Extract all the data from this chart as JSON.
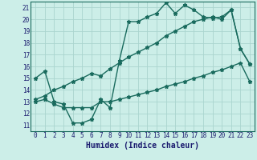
{
  "title": "",
  "xlabel": "Humidex (Indice chaleur)",
  "ylabel": "",
  "bg_color": "#cceee8",
  "grid_color": "#aad4ce",
  "line_color": "#1a6b5e",
  "xlim": [
    -0.5,
    23.5
  ],
  "ylim": [
    10.5,
    21.5
  ],
  "xticks": [
    0,
    1,
    2,
    3,
    4,
    5,
    6,
    7,
    8,
    9,
    10,
    11,
    12,
    13,
    14,
    15,
    16,
    17,
    18,
    19,
    20,
    21,
    22,
    23
  ],
  "yticks": [
    11,
    12,
    13,
    14,
    15,
    16,
    17,
    18,
    19,
    20,
    21
  ],
  "series1_x": [
    0,
    1,
    2,
    3,
    4,
    5,
    6,
    7,
    8,
    9,
    10,
    11,
    12,
    13,
    14,
    15,
    16,
    17,
    18,
    19,
    20,
    21,
    22,
    23
  ],
  "series1_y": [
    15.0,
    15.6,
    13.0,
    12.8,
    11.2,
    11.2,
    11.5,
    13.2,
    12.5,
    16.5,
    19.8,
    19.8,
    20.2,
    20.5,
    21.4,
    20.5,
    21.2,
    20.8,
    20.2,
    20.1,
    20.2,
    20.8,
    17.5,
    16.2
  ],
  "series2_x": [
    0,
    1,
    2,
    3,
    4,
    5,
    6,
    7,
    8,
    9,
    10,
    11,
    12,
    13,
    14,
    15,
    16,
    17,
    18,
    19,
    20,
    21,
    22,
    23
  ],
  "series2_y": [
    13.0,
    13.2,
    12.8,
    12.5,
    12.5,
    12.5,
    12.5,
    13.0,
    13.0,
    13.2,
    13.4,
    13.6,
    13.8,
    14.0,
    14.3,
    14.5,
    14.7,
    15.0,
    15.2,
    15.5,
    15.7,
    16.0,
    16.3,
    14.7
  ],
  "series3_x": [
    0,
    1,
    2,
    3,
    4,
    5,
    6,
    7,
    8,
    9,
    10,
    11,
    12,
    13,
    14,
    15,
    16,
    17,
    18,
    19,
    20,
    21,
    22,
    23
  ],
  "series3_y": [
    13.2,
    13.5,
    14.0,
    14.3,
    14.7,
    15.0,
    15.4,
    15.2,
    15.8,
    16.3,
    16.8,
    17.2,
    17.6,
    18.0,
    18.6,
    19.0,
    19.4,
    19.8,
    20.0,
    20.2,
    20.0,
    20.8,
    17.5,
    16.2
  ],
  "marker": "*",
  "markersize": 3.5,
  "linewidth": 1.0,
  "xlabel_fontsize": 7,
  "tick_fontsize": 5.5
}
